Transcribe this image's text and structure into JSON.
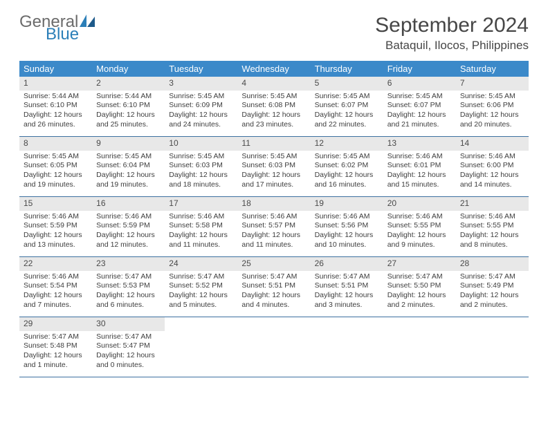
{
  "logo": {
    "text1": "General",
    "text2": "Blue"
  },
  "title": "September 2024",
  "location": "Bataquil, Ilocos, Philippines",
  "colors": {
    "header_bg": "#3b89c9",
    "header_text": "#ffffff",
    "daynum_bg": "#e8e8e8",
    "border": "#3b6fa0",
    "logo_gray": "#6b6b6b",
    "logo_blue": "#2b7fb8"
  },
  "dayNames": [
    "Sunday",
    "Monday",
    "Tuesday",
    "Wednesday",
    "Thursday",
    "Friday",
    "Saturday"
  ],
  "weeks": [
    [
      {
        "n": "1",
        "sr": "5:44 AM",
        "ss": "6:10 PM",
        "dl": "12 hours and 26 minutes."
      },
      {
        "n": "2",
        "sr": "5:44 AM",
        "ss": "6:10 PM",
        "dl": "12 hours and 25 minutes."
      },
      {
        "n": "3",
        "sr": "5:45 AM",
        "ss": "6:09 PM",
        "dl": "12 hours and 24 minutes."
      },
      {
        "n": "4",
        "sr": "5:45 AM",
        "ss": "6:08 PM",
        "dl": "12 hours and 23 minutes."
      },
      {
        "n": "5",
        "sr": "5:45 AM",
        "ss": "6:07 PM",
        "dl": "12 hours and 22 minutes."
      },
      {
        "n": "6",
        "sr": "5:45 AM",
        "ss": "6:07 PM",
        "dl": "12 hours and 21 minutes."
      },
      {
        "n": "7",
        "sr": "5:45 AM",
        "ss": "6:06 PM",
        "dl": "12 hours and 20 minutes."
      }
    ],
    [
      {
        "n": "8",
        "sr": "5:45 AM",
        "ss": "6:05 PM",
        "dl": "12 hours and 19 minutes."
      },
      {
        "n": "9",
        "sr": "5:45 AM",
        "ss": "6:04 PM",
        "dl": "12 hours and 19 minutes."
      },
      {
        "n": "10",
        "sr": "5:45 AM",
        "ss": "6:03 PM",
        "dl": "12 hours and 18 minutes."
      },
      {
        "n": "11",
        "sr": "5:45 AM",
        "ss": "6:03 PM",
        "dl": "12 hours and 17 minutes."
      },
      {
        "n": "12",
        "sr": "5:45 AM",
        "ss": "6:02 PM",
        "dl": "12 hours and 16 minutes."
      },
      {
        "n": "13",
        "sr": "5:46 AM",
        "ss": "6:01 PM",
        "dl": "12 hours and 15 minutes."
      },
      {
        "n": "14",
        "sr": "5:46 AM",
        "ss": "6:00 PM",
        "dl": "12 hours and 14 minutes."
      }
    ],
    [
      {
        "n": "15",
        "sr": "5:46 AM",
        "ss": "5:59 PM",
        "dl": "12 hours and 13 minutes."
      },
      {
        "n": "16",
        "sr": "5:46 AM",
        "ss": "5:59 PM",
        "dl": "12 hours and 12 minutes."
      },
      {
        "n": "17",
        "sr": "5:46 AM",
        "ss": "5:58 PM",
        "dl": "12 hours and 11 minutes."
      },
      {
        "n": "18",
        "sr": "5:46 AM",
        "ss": "5:57 PM",
        "dl": "12 hours and 11 minutes."
      },
      {
        "n": "19",
        "sr": "5:46 AM",
        "ss": "5:56 PM",
        "dl": "12 hours and 10 minutes."
      },
      {
        "n": "20",
        "sr": "5:46 AM",
        "ss": "5:55 PM",
        "dl": "12 hours and 9 minutes."
      },
      {
        "n": "21",
        "sr": "5:46 AM",
        "ss": "5:55 PM",
        "dl": "12 hours and 8 minutes."
      }
    ],
    [
      {
        "n": "22",
        "sr": "5:46 AM",
        "ss": "5:54 PM",
        "dl": "12 hours and 7 minutes."
      },
      {
        "n": "23",
        "sr": "5:47 AM",
        "ss": "5:53 PM",
        "dl": "12 hours and 6 minutes."
      },
      {
        "n": "24",
        "sr": "5:47 AM",
        "ss": "5:52 PM",
        "dl": "12 hours and 5 minutes."
      },
      {
        "n": "25",
        "sr": "5:47 AM",
        "ss": "5:51 PM",
        "dl": "12 hours and 4 minutes."
      },
      {
        "n": "26",
        "sr": "5:47 AM",
        "ss": "5:51 PM",
        "dl": "12 hours and 3 minutes."
      },
      {
        "n": "27",
        "sr": "5:47 AM",
        "ss": "5:50 PM",
        "dl": "12 hours and 2 minutes."
      },
      {
        "n": "28",
        "sr": "5:47 AM",
        "ss": "5:49 PM",
        "dl": "12 hours and 2 minutes."
      }
    ],
    [
      {
        "n": "29",
        "sr": "5:47 AM",
        "ss": "5:48 PM",
        "dl": "12 hours and 1 minute."
      },
      {
        "n": "30",
        "sr": "5:47 AM",
        "ss": "5:47 PM",
        "dl": "12 hours and 0 minutes."
      },
      null,
      null,
      null,
      null,
      null
    ]
  ],
  "labels": {
    "sunrise": "Sunrise: ",
    "sunset": "Sunset: ",
    "daylight": "Daylight: "
  }
}
